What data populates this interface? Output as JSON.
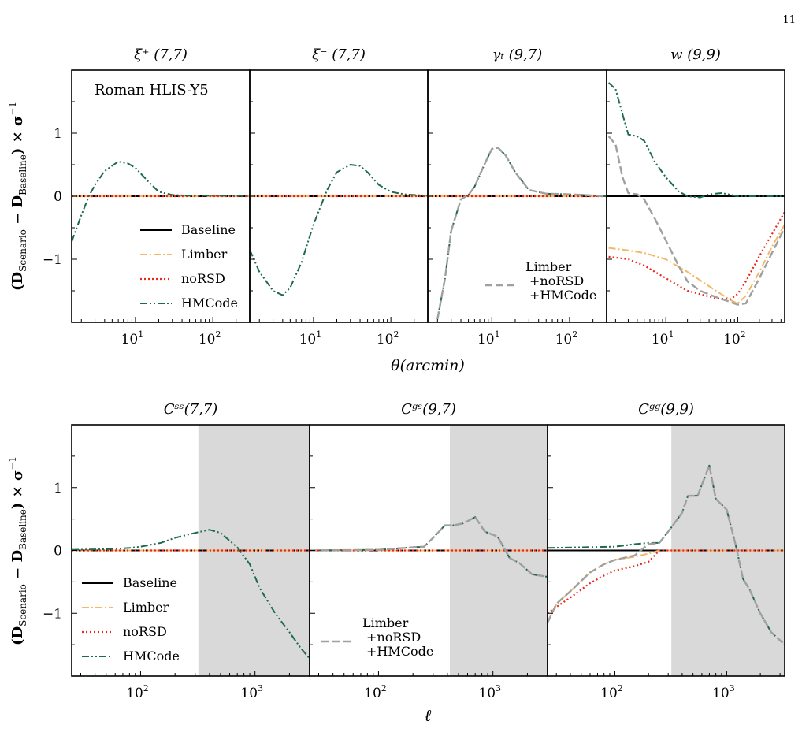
{
  "page": {
    "number": "11"
  },
  "figure": {
    "top_xlabel": "θ(arcmin)",
    "bottom_xlabel": "ℓ",
    "ylabel_main": "(D",
    "ylabel_sub1": "Scenario",
    "ylabel_mid": " − D",
    "ylabel_sub2": "Baseline",
    "ylabel_end": ") × σ",
    "ylabel_sup": "−1",
    "survey_label": "Roman HLIS-Y5"
  },
  "colors": {
    "Baseline": "#000000",
    "Limber": "#f5b866",
    "noRSD": "#e8281e",
    "HMCode": "#1e6b4a",
    "Combined": "#a0a0a0",
    "shade": "#d9d9d9"
  },
  "legend": {
    "entries": [
      "Baseline",
      "Limber",
      "noRSD",
      "HMCode"
    ],
    "combined_lines": [
      "Limber",
      "+noRSD",
      "+HMCode"
    ]
  },
  "chart_data": [
    {
      "type": "line",
      "title": "ξ⁺ (7,7)",
      "row": "top",
      "xlog": true,
      "xlim": [
        1.5,
        300
      ],
      "ylim": [
        -2.0,
        2.0
      ],
      "yticks": [
        -1,
        0,
        1
      ],
      "xticks": [
        10,
        100
      ],
      "series": [
        {
          "name": "Baseline",
          "x": [
            1.5,
            300
          ],
          "y": [
            0,
            0
          ]
        },
        {
          "name": "Limber",
          "x": [
            1.5,
            300
          ],
          "y": [
            0,
            0
          ]
        },
        {
          "name": "noRSD",
          "x": [
            1.5,
            300
          ],
          "y": [
            0,
            0
          ]
        },
        {
          "name": "HMCode",
          "x": [
            1.5,
            2,
            2.5,
            3,
            4,
            6,
            8,
            10,
            15,
            20,
            30,
            50,
            100,
            200,
            300
          ],
          "y": [
            -0.72,
            -0.3,
            0.0,
            0.18,
            0.4,
            0.55,
            0.52,
            0.45,
            0.22,
            0.07,
            0.02,
            0.01,
            0.01,
            0.01,
            0.0
          ]
        }
      ]
    },
    {
      "type": "line",
      "title": "ξ⁻ (7,7)",
      "row": "top",
      "xlog": true,
      "xlim": [
        1.5,
        300
      ],
      "ylim": [
        -2.0,
        2.0
      ],
      "yticks": [
        -1,
        0,
        1
      ],
      "xticks": [
        10,
        100
      ],
      "series": [
        {
          "name": "Baseline",
          "x": [
            1.5,
            300
          ],
          "y": [
            0,
            0
          ]
        },
        {
          "name": "Limber",
          "x": [
            1.5,
            300
          ],
          "y": [
            0,
            0
          ]
        },
        {
          "name": "noRSD",
          "x": [
            1.5,
            300
          ],
          "y": [
            0,
            0
          ]
        },
        {
          "name": "HMCode",
          "x": [
            1.5,
            2,
            3,
            4,
            5,
            7,
            10,
            15,
            20,
            30,
            40,
            50,
            70,
            100,
            150,
            200,
            300
          ],
          "y": [
            -0.85,
            -1.2,
            -1.5,
            -1.57,
            -1.45,
            -1.05,
            -0.45,
            0.1,
            0.38,
            0.5,
            0.48,
            0.38,
            0.18,
            0.07,
            0.03,
            0.02,
            0.01
          ]
        }
      ]
    },
    {
      "type": "line",
      "title": "γₜ (9,7)",
      "row": "top",
      "xlog": true,
      "xlim": [
        1.5,
        300
      ],
      "ylim": [
        -2.0,
        2.0
      ],
      "yticks": [
        -1,
        0,
        1
      ],
      "xticks": [
        10,
        100
      ],
      "series": [
        {
          "name": "Baseline",
          "x": [
            1.5,
            300
          ],
          "y": [
            0,
            0
          ]
        },
        {
          "name": "Limber",
          "x": [
            1.5,
            300
          ],
          "y": [
            0,
            0
          ]
        },
        {
          "name": "noRSD",
          "x": [
            1.5,
            300
          ],
          "y": [
            0,
            0
          ]
        },
        {
          "name": "HMCode",
          "x": [
            2,
            2.5,
            3,
            4,
            5,
            6,
            8,
            10,
            12,
            15,
            20,
            30,
            50,
            100,
            300
          ],
          "y": [
            -1.95,
            -1.3,
            -0.55,
            -0.05,
            0.02,
            0.15,
            0.5,
            0.75,
            0.77,
            0.65,
            0.38,
            0.1,
            0.04,
            0.03,
            0.0
          ]
        },
        {
          "name": "Limber +noRSD +HMCode",
          "x": [
            2,
            2.5,
            3,
            4,
            5,
            6,
            8,
            10,
            12,
            15,
            20,
            30,
            50,
            100,
            300
          ],
          "y": [
            -1.95,
            -1.3,
            -0.55,
            -0.05,
            0.02,
            0.15,
            0.5,
            0.75,
            0.77,
            0.65,
            0.38,
            0.1,
            0.04,
            0.03,
            0.0
          ]
        }
      ]
    },
    {
      "type": "line",
      "title": "w (9,9)",
      "row": "top",
      "xlog": true,
      "xlim": [
        1.5,
        450
      ],
      "ylim": [
        -2.0,
        2.0
      ],
      "yticks": [
        -1,
        0,
        1
      ],
      "xticks": [
        10,
        100
      ],
      "series": [
        {
          "name": "Baseline",
          "x": [
            1.5,
            450
          ],
          "y": [
            0,
            0
          ]
        },
        {
          "name": "Limber",
          "x": [
            1.6,
            3,
            5,
            10,
            20,
            50,
            80,
            100,
            130,
            200,
            300,
            450
          ],
          "y": [
            -0.82,
            -0.86,
            -0.9,
            -1.0,
            -1.2,
            -1.5,
            -1.65,
            -1.7,
            -1.58,
            -1.2,
            -0.8,
            -0.45
          ]
        },
        {
          "name": "noRSD",
          "x": [
            1.6,
            3,
            5,
            10,
            20,
            50,
            80,
            100,
            130,
            200,
            300,
            450
          ],
          "y": [
            -0.96,
            -1.0,
            -1.1,
            -1.3,
            -1.5,
            -1.62,
            -1.63,
            -1.55,
            -1.35,
            -0.95,
            -0.6,
            -0.25
          ]
        },
        {
          "name": "HMCode",
          "x": [
            1.6,
            2,
            2.5,
            3,
            4,
            5,
            7,
            10,
            15,
            20,
            30,
            40,
            60,
            100,
            450
          ],
          "y": [
            1.8,
            1.7,
            1.3,
            0.98,
            0.95,
            0.88,
            0.55,
            0.3,
            0.08,
            0.0,
            -0.02,
            0.03,
            0.05,
            0.0,
            0.0
          ]
        },
        {
          "name": "Limber +noRSD +HMCode",
          "x": [
            1.6,
            2,
            2.5,
            3,
            4,
            5,
            7,
            10,
            15,
            20,
            30,
            50,
            80,
            100,
            130,
            200,
            300,
            450
          ],
          "y": [
            0.95,
            0.82,
            0.3,
            0.05,
            0.03,
            -0.05,
            -0.35,
            -0.7,
            -1.1,
            -1.35,
            -1.5,
            -1.6,
            -1.68,
            -1.72,
            -1.7,
            -1.3,
            -0.9,
            -0.5
          ]
        }
      ]
    },
    {
      "type": "line",
      "title": "Cˢˢ(7,7)",
      "row": "bottom",
      "xlog": true,
      "xlim": [
        25,
        3000
      ],
      "ylim": [
        -2.0,
        2.0
      ],
      "yticks": [
        -1,
        0,
        1
      ],
      "xticks": [
        100,
        1000
      ],
      "shade_from": 320,
      "series": [
        {
          "name": "Baseline",
          "x": [
            25,
            3000
          ],
          "y": [
            0,
            0
          ]
        },
        {
          "name": "Limber",
          "x": [
            25,
            3000
          ],
          "y": [
            0,
            0
          ]
        },
        {
          "name": "noRSD",
          "x": [
            25,
            3000
          ],
          "y": [
            0,
            0
          ]
        },
        {
          "name": "HMCode",
          "x": [
            25,
            50,
            80,
            100,
            150,
            200,
            300,
            400,
            500,
            700,
            900,
            1100,
            1500,
            2000,
            2500,
            3000
          ],
          "y": [
            0.01,
            0.02,
            0.04,
            0.06,
            0.12,
            0.2,
            0.28,
            0.33,
            0.28,
            0.05,
            -0.22,
            -0.6,
            -1.0,
            -1.3,
            -1.55,
            -1.72
          ]
        }
      ]
    },
    {
      "type": "line",
      "title": "Cᵍˢ(9,7)",
      "row": "bottom",
      "xlog": true,
      "xlim": [
        25,
        3000
      ],
      "ylim": [
        -2.0,
        2.0
      ],
      "yticks": [
        -1,
        0,
        1
      ],
      "xticks": [
        100,
        1000
      ],
      "shade_from": 420,
      "series": [
        {
          "name": "Baseline",
          "x": [
            25,
            3000
          ],
          "y": [
            0,
            0
          ]
        },
        {
          "name": "Limber",
          "x": [
            25,
            3000
          ],
          "y": [
            0,
            0
          ]
        },
        {
          "name": "noRSD",
          "x": [
            25,
            3000
          ],
          "y": [
            0,
            0
          ]
        },
        {
          "name": "HMCode",
          "x": [
            25,
            100,
            200,
            250,
            300,
            380,
            450,
            550,
            700,
            850,
            1100,
            1400,
            1700,
            2200,
            3000
          ],
          "y": [
            0.0,
            0.01,
            0.05,
            0.06,
            0.2,
            0.4,
            0.4,
            0.43,
            0.53,
            0.3,
            0.22,
            -0.12,
            -0.2,
            -0.38,
            -0.42
          ]
        },
        {
          "name": "Limber +noRSD +HMCode",
          "x": [
            25,
            100,
            200,
            250,
            300,
            380,
            450,
            550,
            700,
            850,
            1100,
            1400,
            1700,
            2200,
            3000
          ],
          "y": [
            0.0,
            0.01,
            0.05,
            0.06,
            0.2,
            0.4,
            0.4,
            0.43,
            0.53,
            0.3,
            0.22,
            -0.12,
            -0.2,
            -0.38,
            -0.42
          ]
        }
      ]
    },
    {
      "type": "line",
      "title": "Cᵍᵍ(9,9)",
      "row": "bottom",
      "xlog": true,
      "xlim": [
        25,
        3300
      ],
      "ylim": [
        -2.0,
        2.0
      ],
      "yticks": [
        -1,
        0,
        1
      ],
      "xticks": [
        100,
        1000
      ],
      "shade_from": 320,
      "series": [
        {
          "name": "Baseline",
          "x": [
            25,
            3300
          ],
          "y": [
            0,
            0
          ]
        },
        {
          "name": "Limber",
          "x": [
            25,
            30,
            40,
            60,
            80,
            100,
            150,
            200,
            250,
            3300
          ],
          "y": [
            -1.15,
            -0.85,
            -0.65,
            -0.35,
            -0.22,
            -0.15,
            -0.1,
            -0.05,
            0.0,
            0.0
          ]
        },
        {
          "name": "noRSD",
          "x": [
            25,
            30,
            40,
            60,
            80,
            100,
            150,
            200,
            250,
            3300
          ],
          "y": [
            -1.0,
            -0.9,
            -0.75,
            -0.52,
            -0.4,
            -0.32,
            -0.25,
            -0.18,
            0.0,
            0.0
          ]
        },
        {
          "name": "HMCode",
          "x": [
            25,
            50,
            100,
            150,
            200,
            250,
            300,
            400,
            450,
            550,
            700,
            800,
            1000,
            1200,
            1400,
            1600,
            2000,
            2500,
            3300
          ],
          "y": [
            0.04,
            0.05,
            0.06,
            0.1,
            0.12,
            0.12,
            0.3,
            0.6,
            0.87,
            0.87,
            1.35,
            0.82,
            0.65,
            0.1,
            -0.45,
            -0.62,
            -1.0,
            -1.3,
            -1.5
          ]
        },
        {
          "name": "Limber +noRSD +HMCode",
          "x": [
            25,
            30,
            40,
            60,
            80,
            100,
            150,
            200,
            250,
            300,
            400,
            450,
            550,
            700,
            800,
            1000,
            1200,
            1400,
            1600,
            2000,
            2500,
            3300
          ],
          "y": [
            -1.15,
            -0.85,
            -0.65,
            -0.35,
            -0.22,
            -0.15,
            -0.08,
            0.1,
            0.12,
            0.3,
            0.6,
            0.87,
            0.87,
            1.35,
            0.82,
            0.65,
            0.1,
            -0.45,
            -0.62,
            -1.0,
            -1.3,
            -1.5
          ]
        }
      ]
    }
  ]
}
